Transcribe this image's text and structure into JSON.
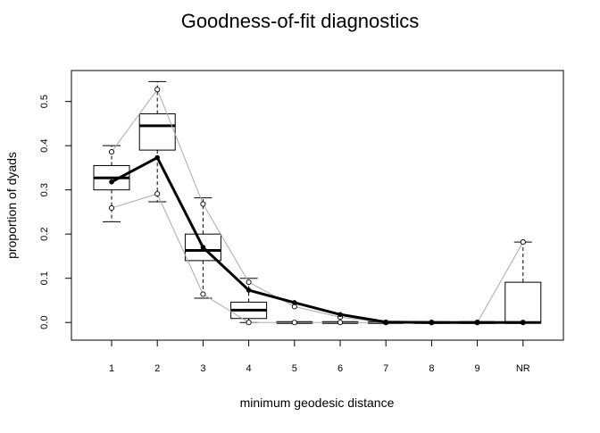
{
  "chart_data": {
    "type": "box",
    "title": "Goodness-of-fit diagnostics",
    "xlabel": "minimum geodesic distance",
    "ylabel": "proportion of dyads",
    "categories": [
      "1",
      "2",
      "3",
      "4",
      "5",
      "6",
      "7",
      "8",
      "9",
      "NR"
    ],
    "ylim": [
      -0.04,
      0.57
    ],
    "yticks": [
      0.0,
      0.1,
      0.2,
      0.3,
      0.4,
      0.5
    ],
    "ytick_labels": [
      "0.0",
      "0.1",
      "0.2",
      "0.3",
      "0.4",
      "0.5"
    ],
    "grid": false,
    "boxes": [
      {
        "category": "1",
        "whisker_low": 0.228,
        "q1": 0.3,
        "median": 0.327,
        "q3": 0.355,
        "whisker_high": 0.4
      },
      {
        "category": "2",
        "whisker_low": 0.273,
        "q1": 0.39,
        "median": 0.445,
        "q3": 0.472,
        "whisker_high": 0.545
      },
      {
        "category": "3",
        "whisker_low": 0.055,
        "q1": 0.14,
        "median": 0.163,
        "q3": 0.2,
        "whisker_high": 0.282
      },
      {
        "category": "4",
        "whisker_low": 0.0,
        "q1": 0.009,
        "median": 0.028,
        "q3": 0.046,
        "whisker_high": 0.1
      },
      {
        "category": "5",
        "whisker_low": 0.0,
        "q1": 0.0,
        "median": 0.0,
        "q3": 0.001,
        "whisker_high": 0.001
      },
      {
        "category": "6",
        "whisker_low": 0.0,
        "q1": 0.0,
        "median": 0.0,
        "q3": 0.001,
        "whisker_high": 0.001
      },
      {
        "category": "7",
        "whisker_low": 0.0,
        "q1": 0.0,
        "median": 0.0,
        "q3": 0.0,
        "whisker_high": 0.0
      },
      {
        "category": "8",
        "whisker_low": 0.0,
        "q1": 0.0,
        "median": 0.0,
        "q3": 0.0,
        "whisker_high": 0.0
      },
      {
        "category": "9",
        "whisker_low": 0.0,
        "q1": 0.0,
        "median": 0.0,
        "q3": 0.0,
        "whisker_high": 0.0
      },
      {
        "category": "NR",
        "whisker_low": 0.0,
        "q1": 0.0,
        "median": 0.0,
        "q3": 0.091,
        "whisker_high": 0.182
      }
    ],
    "series": [
      {
        "role": "observed",
        "color": "#000000",
        "values": [
          0.318,
          0.373,
          0.17,
          0.073,
          0.045,
          0.018,
          0.001,
          0.0,
          0.0,
          0.0
        ]
      },
      {
        "role": "upper-bound",
        "color": "#aaaaaa",
        "values": [
          0.386,
          0.527,
          0.268,
          0.091,
          0.036,
          0.012,
          0.0,
          0.0,
          0.0,
          0.182
        ]
      },
      {
        "role": "lower-bound",
        "color": "#aaaaaa",
        "values": [
          0.259,
          0.291,
          0.064,
          0.0,
          0.0,
          0.0,
          0.0,
          0.0,
          0.0,
          0.0
        ]
      }
    ]
  }
}
